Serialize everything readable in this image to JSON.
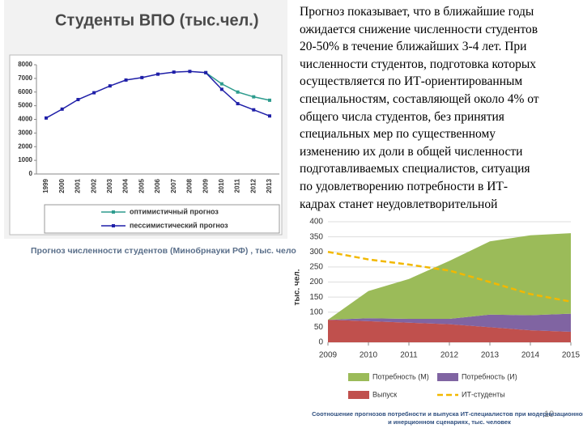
{
  "chart_data": [
    {
      "type": "line",
      "title": "Студенты ВПО (тыс.чел.)",
      "caption": "Прогноз численности студентов (Минобрнауки РФ) , тыс. чело",
      "categories": [
        "1999",
        "2000",
        "2001",
        "2002",
        "2003",
        "2004",
        "2005",
        "2006",
        "2007",
        "2008",
        "2009",
        "2010",
        "2011",
        "2012",
        "2013"
      ],
      "series": [
        {
          "name": "оптимистичный прогноз",
          "color": "#2e9c8e",
          "values": [
            null,
            null,
            null,
            null,
            null,
            null,
            null,
            null,
            null,
            null,
            7420,
            6600,
            6000,
            5650,
            5400
          ]
        },
        {
          "name": "пессимистический прогноз",
          "color": "#1f1fa8",
          "values": [
            4100,
            4750,
            5450,
            5950,
            6450,
            6880,
            7060,
            7310,
            7460,
            7510,
            7420,
            6200,
            5150,
            4700,
            4250
          ]
        }
      ],
      "ylim": [
        0,
        8000
      ],
      "yticks": [
        0,
        1000,
        2000,
        3000,
        4000,
        5000,
        6000,
        7000,
        8000
      ],
      "grid": false
    },
    {
      "type": "area",
      "ylabel": "тыс. чел.",
      "caption": "Соотношение прогнозов потребности и выпуска ИТ-специалистов при модернизационном и инерционном сценариях, тыс. человек",
      "x": [
        2009,
        2010,
        2011,
        2012,
        2013,
        2014,
        2015
      ],
      "xlim": [
        2009,
        2015
      ],
      "xticks": [
        2009,
        2010,
        2011,
        2012,
        2013,
        2014,
        2015
      ],
      "ylim": [
        0,
        400
      ],
      "yticks": [
        0,
        50,
        100,
        150,
        200,
        250,
        300,
        350,
        400
      ],
      "series": [
        {
          "name": "Потребность (М)",
          "color": "#9bbb59",
          "stacked": true,
          "values": [
            0,
            90,
            132,
            192,
            243,
            265,
            267
          ]
        },
        {
          "name": "Потребность (И)",
          "color": "#8064a2",
          "stacked": true,
          "values": [
            0,
            10,
            13,
            18,
            42,
            50,
            60
          ]
        },
        {
          "name": "Выпуск",
          "color": "#c0504d",
          "stacked": true,
          "values": [
            75,
            70,
            65,
            60,
            50,
            40,
            35
          ]
        },
        {
          "name": "ИТ-студенты",
          "color": "#f2b800",
          "dashed": true,
          "values": [
            300,
            275,
            258,
            238,
            200,
            160,
            135
          ]
        }
      ]
    }
  ],
  "text": {
    "lines": [
      "Прогноз показывает, что в ближайшие годы",
      "ожидается снижение численности студентов",
      "20-50% в течение ближайших 3-4 лет. При",
      "численности студентов, подготовка которых",
      "осуществляется по ИТ-ориентированным",
      "специальностям, составляющей около 4% от",
      "общего числа студентов, без принятия",
      "специальных мер по существенному",
      "изменению их доли в общей численности",
      "подготавливаемых специалистов, ситуация",
      "по удовлетворению потребности в ИТ-",
      "кадрах станет неудовлетворительной"
    ]
  },
  "page_number": "10"
}
